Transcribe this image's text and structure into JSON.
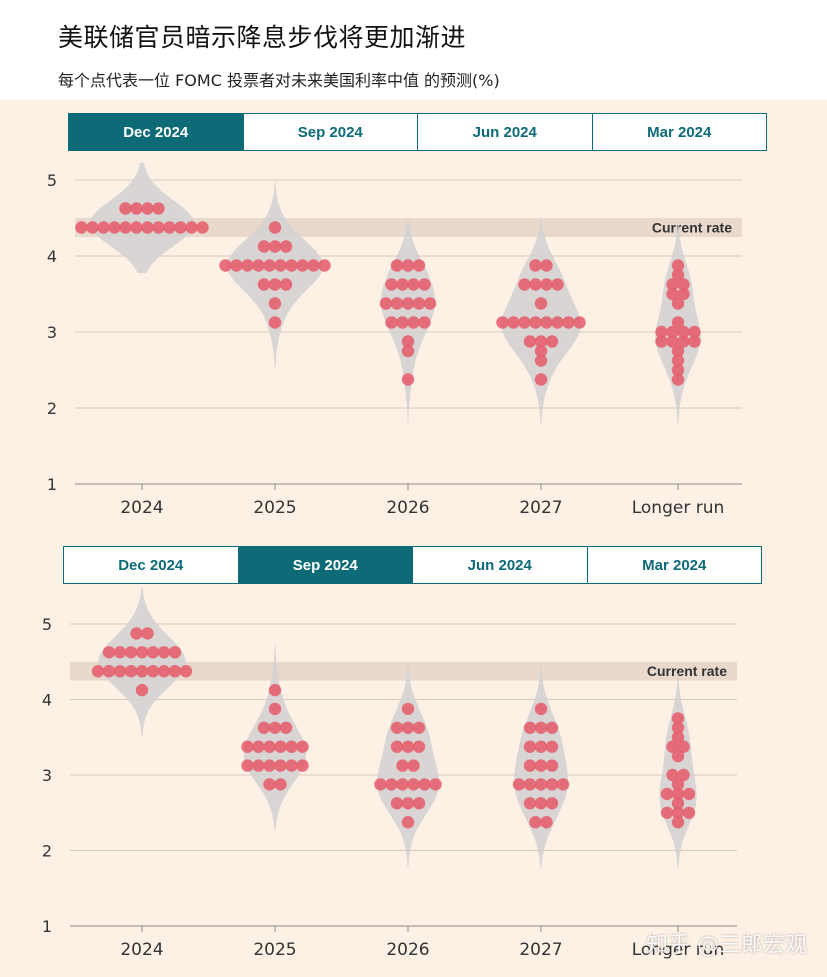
{
  "header": {
    "title": "美联储官员暗示降息步伐将更加渐进",
    "subtitle": "每个点代表一位 FOMC 投票者对未来美国利率中值 的预测(%)"
  },
  "watermark": "知乎 @三郎宏观",
  "colors": {
    "dot": "#e6616f",
    "violin": "#d4d2d1",
    "band": "#e8d9cc",
    "accent": "#0d6b78"
  },
  "panels": [
    {
      "tabs": [
        "Dec 2024",
        "Sep 2024",
        "Jun 2024",
        "Mar 2024"
      ],
      "active": 0
    },
    {
      "tabs": [
        "Dec 2024",
        "Sep 2024",
        "Jun 2024",
        "Mar 2024"
      ],
      "active": 1
    }
  ],
  "chart_data": [
    {
      "type": "scatter",
      "title": "Dec 2024",
      "categories": [
        "2024",
        "2025",
        "2026",
        "2027",
        "Longer run"
      ],
      "yticks": [
        1,
        2,
        3,
        4,
        5
      ],
      "ylim": [
        1,
        5.3
      ],
      "band_range": [
        4.25,
        4.5
      ],
      "band_label": "Current rate",
      "dots": [
        [
          {
            "v": 4.625,
            "n": 4
          },
          {
            "v": 4.375,
            "n": 12
          }
        ],
        [
          {
            "v": 4.375,
            "n": 1
          },
          {
            "v": 4.125,
            "n": 3
          },
          {
            "v": 3.875,
            "n": 10
          },
          {
            "v": 3.625,
            "n": 3
          },
          {
            "v": 3.375,
            "n": 1
          },
          {
            "v": 3.125,
            "n": 1
          }
        ],
        [
          {
            "v": 3.875,
            "n": 3
          },
          {
            "v": 3.625,
            "n": 4
          },
          {
            "v": 3.375,
            "n": 5
          },
          {
            "v": 3.125,
            "n": 4
          },
          {
            "v": 2.875,
            "n": 1
          },
          {
            "v": 2.75,
            "n": 1
          },
          {
            "v": 2.375,
            "n": 1
          }
        ],
        [
          {
            "v": 3.875,
            "n": 2
          },
          {
            "v": 3.625,
            "n": 4
          },
          {
            "v": 3.375,
            "n": 1
          },
          {
            "v": 3.125,
            "n": 8
          },
          {
            "v": 2.875,
            "n": 3
          },
          {
            "v": 2.75,
            "n": 1
          },
          {
            "v": 2.625,
            "n": 1
          },
          {
            "v": 2.375,
            "n": 1
          }
        ],
        [
          {
            "v": 3.875,
            "n": 1
          },
          {
            "v": 3.75,
            "n": 1
          },
          {
            "v": 3.625,
            "n": 2
          },
          {
            "v": 3.5,
            "n": 2
          },
          {
            "v": 3.375,
            "n": 1
          },
          {
            "v": 3.125,
            "n": 1
          },
          {
            "v": 3.0,
            "n": 4
          },
          {
            "v": 2.875,
            "n": 4
          },
          {
            "v": 2.75,
            "n": 1
          },
          {
            "v": 2.625,
            "n": 1
          },
          {
            "v": 2.5,
            "n": 1
          },
          {
            "v": 2.375,
            "n": 1
          }
        ]
      ]
    },
    {
      "type": "scatter",
      "title": "Sep 2024",
      "categories": [
        "2024",
        "2025",
        "2026",
        "2027",
        "Longer run"
      ],
      "yticks": [
        1,
        2,
        3,
        4,
        5
      ],
      "ylim": [
        1,
        5.3
      ],
      "band_range": [
        4.25,
        4.5
      ],
      "band_label": "Current rate",
      "dots": [
        [
          {
            "v": 4.875,
            "n": 2
          },
          {
            "v": 4.625,
            "n": 7
          },
          {
            "v": 4.375,
            "n": 9
          },
          {
            "v": 4.125,
            "n": 1
          }
        ],
        [
          {
            "v": 4.125,
            "n": 1
          },
          {
            "v": 3.875,
            "n": 1
          },
          {
            "v": 3.625,
            "n": 3
          },
          {
            "v": 3.375,
            "n": 6
          },
          {
            "v": 3.125,
            "n": 6
          },
          {
            "v": 2.875,
            "n": 2
          }
        ],
        [
          {
            "v": 3.875,
            "n": 1
          },
          {
            "v": 3.625,
            "n": 3
          },
          {
            "v": 3.375,
            "n": 3
          },
          {
            "v": 3.125,
            "n": 2
          },
          {
            "v": 2.875,
            "n": 6
          },
          {
            "v": 2.625,
            "n": 3
          },
          {
            "v": 2.375,
            "n": 1
          }
        ],
        [
          {
            "v": 3.875,
            "n": 1
          },
          {
            "v": 3.625,
            "n": 3
          },
          {
            "v": 3.375,
            "n": 3
          },
          {
            "v": 3.125,
            "n": 3
          },
          {
            "v": 2.875,
            "n": 5
          },
          {
            "v": 2.625,
            "n": 3
          },
          {
            "v": 2.375,
            "n": 2
          }
        ],
        [
          {
            "v": 3.75,
            "n": 1
          },
          {
            "v": 3.625,
            "n": 1
          },
          {
            "v": 3.5,
            "n": 1
          },
          {
            "v": 3.375,
            "n": 2
          },
          {
            "v": 3.25,
            "n": 1
          },
          {
            "v": 3.0,
            "n": 2
          },
          {
            "v": 2.875,
            "n": 1
          },
          {
            "v": 2.75,
            "n": 3
          },
          {
            "v": 2.625,
            "n": 1
          },
          {
            "v": 2.5,
            "n": 3
          },
          {
            "v": 2.375,
            "n": 1
          }
        ]
      ]
    }
  ]
}
